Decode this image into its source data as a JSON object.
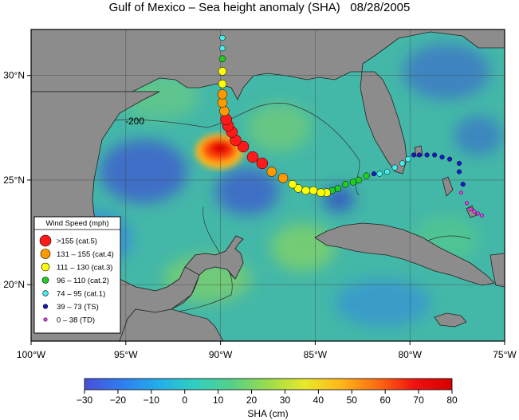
{
  "title": "Gulf of Mexico – Sea height anomaly (SHA)   08/28/2005",
  "map": {
    "lon_range": [
      -100,
      -75
    ],
    "lat_range": [
      17.3,
      32.2
    ],
    "lat_ticks": [
      {
        "value": 30,
        "label": "30°N"
      },
      {
        "value": 25,
        "label": "25°N"
      },
      {
        "value": 20,
        "label": "20°N"
      }
    ],
    "lon_ticks": [
      {
        "value": -100,
        "label": "100°W"
      },
      {
        "value": -95,
        "label": "95°W"
      },
      {
        "value": -90,
        "label": "90°W"
      },
      {
        "value": -85,
        "label": "85°W"
      },
      {
        "value": -80,
        "label": "80°W"
      },
      {
        "value": -75,
        "label": "75°W"
      }
    ],
    "contour_label": "-200",
    "land_color": "#8c8c8c",
    "ocean_base_color": "#44b8a8"
  },
  "legend": {
    "title": "Wind Speed (mph)",
    "items": [
      {
        "label": ">155 (cat.5)",
        "color": "#ff1a1a",
        "size": 7
      },
      {
        "label": "131 – 155 (cat.4)",
        "color": "#ff9900",
        "size": 6
      },
      {
        "label": "111 – 130 (cat.3)",
        "color": "#ffff00",
        "size": 5
      },
      {
        "label": "96 – 110 (cat.2)",
        "color": "#22cc22",
        "size": 4
      },
      {
        "label": "74 – 95 (cat.1)",
        "color": "#44f0f0",
        "size": 3.4
      },
      {
        "label": "39 – 73 (TS)",
        "color": "#1a1acc",
        "size": 2.8
      },
      {
        "label": "0 – 38 (TD)",
        "color": "#ff33ff",
        "size": 2.2
      }
    ]
  },
  "track": [
    {
      "lon": -76.2,
      "lat": 23.3,
      "cat": "TD"
    },
    {
      "lon": -76.4,
      "lat": 23.4,
      "cat": "TD"
    },
    {
      "lon": -76.6,
      "lat": 23.5,
      "cat": "TD"
    },
    {
      "lon": -76.8,
      "lat": 23.6,
      "cat": "TD"
    },
    {
      "lon": -77.0,
      "lat": 23.9,
      "cat": "TD"
    },
    {
      "lon": -77.3,
      "lat": 24.4,
      "cat": "TD"
    },
    {
      "lon": -77.2,
      "lat": 24.8,
      "cat": "TS"
    },
    {
      "lon": -77.4,
      "lat": 25.4,
      "cat": "TS"
    },
    {
      "lon": -77.4,
      "lat": 25.8,
      "cat": "TS"
    },
    {
      "lon": -77.9,
      "lat": 26.0,
      "cat": "TS"
    },
    {
      "lon": -78.3,
      "lat": 26.1,
      "cat": "TS"
    },
    {
      "lon": -78.7,
      "lat": 26.2,
      "cat": "TS"
    },
    {
      "lon": -79.1,
      "lat": 26.2,
      "cat": "TS"
    },
    {
      "lon": -79.5,
      "lat": 26.2,
      "cat": "TS"
    },
    {
      "lon": -79.8,
      "lat": 26.2,
      "cat": "TS"
    },
    {
      "lon": -80.1,
      "lat": 26.0,
      "cat": "cat1"
    },
    {
      "lon": -80.4,
      "lat": 25.8,
      "cat": "cat1"
    },
    {
      "lon": -80.8,
      "lat": 25.6,
      "cat": "cat1"
    },
    {
      "lon": -81.2,
      "lat": 25.4,
      "cat": "cat1"
    },
    {
      "lon": -81.6,
      "lat": 25.3,
      "cat": "cat1"
    },
    {
      "lon": -81.9,
      "lat": 25.3,
      "cat": "TS"
    },
    {
      "lon": -82.3,
      "lat": 25.2,
      "cat": "cat2"
    },
    {
      "lon": -82.7,
      "lat": 25.0,
      "cat": "cat2"
    },
    {
      "lon": -83.0,
      "lat": 24.9,
      "cat": "cat2"
    },
    {
      "lon": -83.4,
      "lat": 24.8,
      "cat": "cat2"
    },
    {
      "lon": -83.8,
      "lat": 24.6,
      "cat": "cat2"
    },
    {
      "lon": -84.1,
      "lat": 24.5,
      "cat": "cat2"
    },
    {
      "lon": -84.4,
      "lat": 24.4,
      "cat": "cat3"
    },
    {
      "lon": -84.7,
      "lat": 24.4,
      "cat": "cat3"
    },
    {
      "lon": -85.1,
      "lat": 24.5,
      "cat": "cat3"
    },
    {
      "lon": -85.5,
      "lat": 24.5,
      "cat": "cat3"
    },
    {
      "lon": -85.9,
      "lat": 24.6,
      "cat": "cat3"
    },
    {
      "lon": -86.2,
      "lat": 24.8,
      "cat": "cat3"
    },
    {
      "lon": -86.7,
      "lat": 25.1,
      "cat": "cat4"
    },
    {
      "lon": -87.3,
      "lat": 25.4,
      "cat": "cat4"
    },
    {
      "lon": -87.8,
      "lat": 25.8,
      "cat": "cat5"
    },
    {
      "lon": -88.3,
      "lat": 26.1,
      "cat": "cat5"
    },
    {
      "lon": -88.8,
      "lat": 26.6,
      "cat": "cat5"
    },
    {
      "lon": -89.2,
      "lat": 26.9,
      "cat": "cat5"
    },
    {
      "lon": -89.4,
      "lat": 27.3,
      "cat": "cat5"
    },
    {
      "lon": -89.6,
      "lat": 27.6,
      "cat": "cat5"
    },
    {
      "lon": -89.7,
      "lat": 27.9,
      "cat": "cat5"
    },
    {
      "lon": -89.8,
      "lat": 28.3,
      "cat": "cat4"
    },
    {
      "lon": -89.9,
      "lat": 28.7,
      "cat": "cat4"
    },
    {
      "lon": -89.9,
      "lat": 29.1,
      "cat": "cat4"
    },
    {
      "lon": -89.9,
      "lat": 29.6,
      "cat": "cat3"
    },
    {
      "lon": -89.9,
      "lat": 30.2,
      "cat": "cat3"
    },
    {
      "lon": -89.9,
      "lat": 30.8,
      "cat": "cat2"
    },
    {
      "lon": -89.9,
      "lat": 31.3,
      "cat": "cat1"
    },
    {
      "lon": -89.9,
      "lat": 31.8,
      "cat": "cat1"
    }
  ],
  "colorbar": {
    "ticks": [
      -30,
      -20,
      -10,
      0,
      10,
      20,
      30,
      40,
      50,
      60,
      70,
      80
    ],
    "min": -30,
    "max": 80,
    "label": "SHA (cm)",
    "colors": [
      "#4a4fd6",
      "#2f7cf0",
      "#22aee8",
      "#30cfc0",
      "#55d08a",
      "#9bdc4c",
      "#e8e82a",
      "#ffb61a",
      "#ff6a10",
      "#f01010",
      "#d60000"
    ]
  }
}
